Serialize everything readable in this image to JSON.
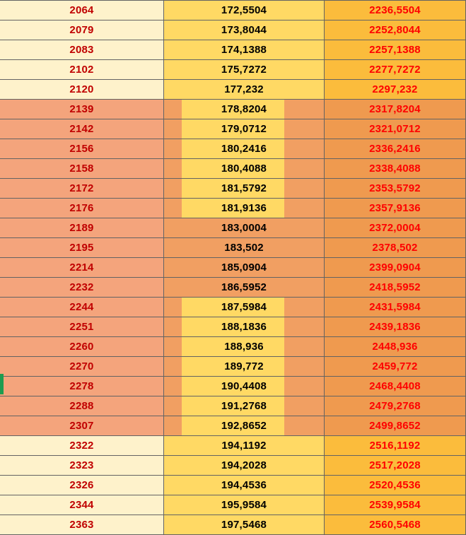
{
  "sheet": {
    "type": "spreadsheet-table",
    "column_names": [
      "base-value",
      "increment-value",
      "sum-value"
    ],
    "decimal_separator": ",",
    "row_count": 27
  },
  "rows": [
    {
      "v": [
        "2064",
        "172,5504",
        "2236,5504"
      ],
      "hl": "none"
    },
    {
      "v": [
        "2079",
        "173,8044",
        "2252,8044"
      ],
      "hl": "none"
    },
    {
      "v": [
        "2083",
        "174,1388",
        "2257,1388"
      ],
      "hl": "none"
    },
    {
      "v": [
        "2102",
        "175,7272",
        "2277,7272"
      ],
      "hl": "none"
    },
    {
      "v": [
        "2120",
        "177,232",
        "2297,232"
      ],
      "hl": "none"
    },
    {
      "v": [
        "2139",
        "178,8204",
        "2317,8204"
      ],
      "hl": "hole"
    },
    {
      "v": [
        "2142",
        "179,0712",
        "2321,0712"
      ],
      "hl": "hole"
    },
    {
      "v": [
        "2156",
        "180,2416",
        "2336,2416"
      ],
      "hl": "hole"
    },
    {
      "v": [
        "2158",
        "180,4088",
        "2338,4088"
      ],
      "hl": "hole"
    },
    {
      "v": [
        "2172",
        "181,5792",
        "2353,5792"
      ],
      "hl": "hole"
    },
    {
      "v": [
        "2176",
        "181,9136",
        "2357,9136"
      ],
      "hl": "hole"
    },
    {
      "v": [
        "2189",
        "183,0004",
        "2372,0004"
      ],
      "hl": "full"
    },
    {
      "v": [
        "2195",
        "183,502",
        "2378,502"
      ],
      "hl": "full"
    },
    {
      "v": [
        "2214",
        "185,0904",
        "2399,0904"
      ],
      "hl": "full"
    },
    {
      "v": [
        "2232",
        "186,5952",
        "2418,5952"
      ],
      "hl": "full"
    },
    {
      "v": [
        "2244",
        "187,5984",
        "2431,5984"
      ],
      "hl": "hole"
    },
    {
      "v": [
        "2251",
        "188,1836",
        "2439,1836"
      ],
      "hl": "hole"
    },
    {
      "v": [
        "2260",
        "188,936",
        "2448,936"
      ],
      "hl": "hole"
    },
    {
      "v": [
        "2270",
        "189,772",
        "2459,772"
      ],
      "hl": "hole"
    },
    {
      "v": [
        "2278",
        "190,4408",
        "2468,4408"
      ],
      "hl": "hole"
    },
    {
      "v": [
        "2288",
        "191,2768",
        "2479,2768"
      ],
      "hl": "hole"
    },
    {
      "v": [
        "2307",
        "192,8652",
        "2499,8652"
      ],
      "hl": "hole"
    },
    {
      "v": [
        "2322",
        "194,1192",
        "2516,1192"
      ],
      "hl": "none"
    },
    {
      "v": [
        "2323",
        "194,2028",
        "2517,2028"
      ],
      "hl": "none"
    },
    {
      "v": [
        "2326",
        "194,4536",
        "2520,4536"
      ],
      "hl": "none"
    },
    {
      "v": [
        "2344",
        "195,9584",
        "2539,9584"
      ],
      "hl": "none"
    },
    {
      "v": [
        "2363",
        "197,5468",
        "2560,5468"
      ],
      "hl": "none"
    }
  ],
  "colors": {
    "col1_bg": "#FEF2CB",
    "col2_bg": "#FFD964",
    "col3_bg": "#FBBC3C",
    "col1_highlight": "#F4A47C",
    "col2_highlight": "#F19F62",
    "col3_highlight": "#EF9A4F",
    "col1_text": "#C00000",
    "col2_text": "#000000",
    "col3_text": "#FE0000",
    "grid_line": "#636363",
    "marker_green": "#1E9C50"
  }
}
